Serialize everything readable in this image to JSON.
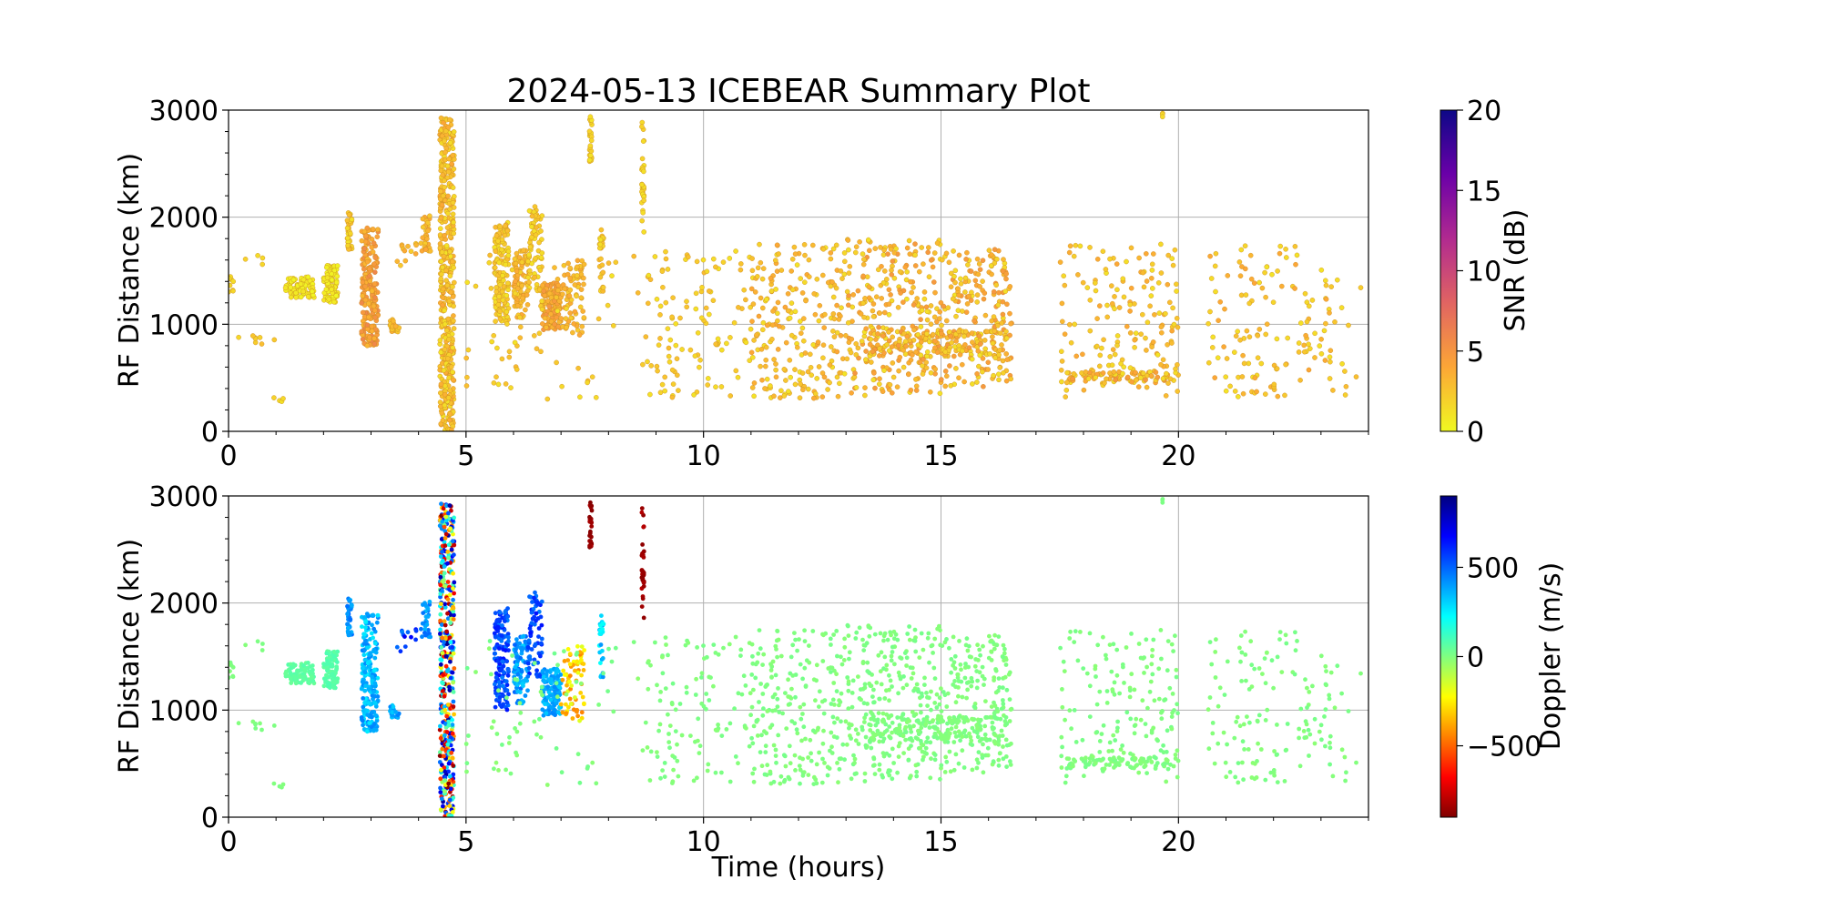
{
  "title": "2024-05-13 ICEBEAR Summary Plot",
  "chart_data": [
    {
      "type": "scatter",
      "panel": "top",
      "xlabel": "",
      "ylabel": "RF Distance (km)",
      "xlim": [
        0,
        24
      ],
      "ylim": [
        0,
        3000
      ],
      "xticks": [
        0,
        5,
        10,
        15,
        20
      ],
      "yticks": [
        0,
        1000,
        2000,
        3000
      ],
      "grid": true,
      "color_by": "snr",
      "colorbar": {
        "label": "SNR (dB)",
        "range": [
          0,
          20
        ],
        "ticks": [
          0,
          5,
          10,
          15,
          20
        ],
        "colormap": "plasma_r",
        "colors": [
          "#f0f921",
          "#fca636",
          "#e16462",
          "#b12a90",
          "#6a00a8",
          "#0d0887"
        ]
      }
    },
    {
      "type": "scatter",
      "panel": "bottom",
      "xlabel": "Time (hours)",
      "ylabel": "RF Distance (km)",
      "xlim": [
        0,
        24
      ],
      "ylim": [
        0,
        3000
      ],
      "xticks": [
        0,
        5,
        10,
        15,
        20
      ],
      "yticks": [
        0,
        1000,
        2000,
        3000
      ],
      "grid": true,
      "color_by": "doppler",
      "colorbar": {
        "label": "Doppler (m/s)",
        "range": [
          -900,
          900
        ],
        "ticks": [
          -500,
          0,
          500
        ],
        "tick_labels": [
          "−500",
          "0",
          "500"
        ],
        "colormap": "jet_r",
        "colors": [
          "#800000",
          "#ff0000",
          "#ff8000",
          "#ffff00",
          "#80ff80",
          "#00ffff",
          "#0080ff",
          "#0000ff",
          "#000080"
        ]
      }
    }
  ],
  "clusters": [
    {
      "t": [
        0.0,
        0.1
      ],
      "r": [
        1300,
        1450
      ],
      "n": 8,
      "snr": [
        1,
        2
      ],
      "dop": [
        -10,
        10
      ]
    },
    {
      "t": [
        0.2,
        1.0
      ],
      "r": [
        800,
        900
      ],
      "n": 8,
      "snr": [
        1,
        3
      ],
      "dop": [
        -10,
        10
      ]
    },
    {
      "t": [
        0.8,
        1.2
      ],
      "r": [
        270,
        320
      ],
      "n": 4,
      "snr": [
        1,
        2
      ],
      "dop": [
        -10,
        10
      ]
    },
    {
      "t": [
        0.3,
        0.8
      ],
      "r": [
        1550,
        1650
      ],
      "n": 4,
      "snr": [
        1,
        2
      ],
      "dop": [
        -10,
        10
      ]
    },
    {
      "t": [
        1.2,
        1.8
      ],
      "r": [
        1250,
        1450
      ],
      "n": 90,
      "snr": [
        0,
        1
      ],
      "dop": [
        40,
        80
      ]
    },
    {
      "t": [
        2.0,
        2.3
      ],
      "r": [
        1200,
        1550
      ],
      "n": 90,
      "snr": [
        0,
        1
      ],
      "dop": [
        50,
        90
      ]
    },
    {
      "t": [
        2.5,
        2.6
      ],
      "r": [
        1700,
        2050
      ],
      "n": 40,
      "snr": [
        1,
        3
      ],
      "dop": [
        350,
        500
      ]
    },
    {
      "t": [
        2.8,
        3.15
      ],
      "r": [
        800,
        1900
      ],
      "n": 200,
      "snr": [
        3,
        6
      ],
      "dop": [
        250,
        450
      ]
    },
    {
      "t": [
        3.4,
        3.6
      ],
      "r": [
        900,
        1050
      ],
      "n": 20,
      "snr": [
        2,
        4
      ],
      "dop": [
        300,
        450
      ]
    },
    {
      "t": [
        3.5,
        4.0
      ],
      "r": [
        1500,
        1800
      ],
      "n": 12,
      "snr": [
        2,
        4
      ],
      "dop": [
        400,
        700
      ]
    },
    {
      "t": [
        4.05,
        4.25
      ],
      "r": [
        1650,
        2050
      ],
      "n": 30,
      "snr": [
        2,
        4
      ],
      "dop": [
        350,
        500
      ]
    },
    {
      "t": [
        4.45,
        4.75
      ],
      "r": [
        0,
        2950
      ],
      "n": 450,
      "snr": [
        1,
        4
      ],
      "dop": [
        -900,
        900
      ]
    },
    {
      "t": [
        5.6,
        5.9
      ],
      "r": [
        1000,
        1950
      ],
      "n": 140,
      "snr": [
        1,
        3
      ],
      "dop": [
        450,
        650
      ]
    },
    {
      "t": [
        6.0,
        6.3
      ],
      "r": [
        1050,
        1700
      ],
      "n": 90,
      "snr": [
        2,
        4
      ],
      "dop": [
        300,
        500
      ]
    },
    {
      "t": [
        6.3,
        6.6
      ],
      "r": [
        1300,
        2100
      ],
      "n": 70,
      "snr": [
        1,
        3
      ],
      "dop": [
        450,
        650
      ]
    },
    {
      "t": [
        6.6,
        7.0
      ],
      "r": [
        950,
        1400
      ],
      "n": 120,
      "snr": [
        3,
        5
      ],
      "dop": [
        300,
        450
      ]
    },
    {
      "t": [
        7.0,
        7.5
      ],
      "r": [
        900,
        1600
      ],
      "n": 70,
      "snr": [
        2,
        4
      ],
      "dop": [
        -450,
        -150
      ]
    },
    {
      "t": [
        7.6,
        7.65
      ],
      "r": [
        2500,
        2950
      ],
      "n": 25,
      "snr": [
        1,
        2
      ],
      "dop": [
        -900,
        -800
      ]
    },
    {
      "t": [
        7.8,
        7.9
      ],
      "r": [
        1300,
        1900
      ],
      "n": 25,
      "snr": [
        1,
        3
      ],
      "dop": [
        200,
        450
      ]
    },
    {
      "t": [
        8.7,
        8.75
      ],
      "r": [
        1850,
        2950
      ],
      "n": 30,
      "snr": [
        1,
        2
      ],
      "dop": [
        -900,
        -800
      ]
    },
    {
      "t": [
        5.0,
        8.8
      ],
      "r": [
        300,
        1700
      ],
      "n": 70,
      "snr": [
        1,
        3
      ],
      "dop": [
        -30,
        30
      ]
    },
    {
      "t": [
        8.8,
        11.0
      ],
      "r": [
        300,
        1700
      ],
      "n": 110,
      "snr": [
        1,
        3
      ],
      "dop": [
        -20,
        20
      ]
    },
    {
      "t": [
        11.0,
        13.0
      ],
      "r": [
        300,
        1750
      ],
      "n": 220,
      "snr": [
        1,
        4
      ],
      "dop": [
        -20,
        20
      ]
    },
    {
      "t": [
        13.0,
        15.0
      ],
      "r": [
        300,
        1800
      ],
      "n": 280,
      "snr": [
        1,
        5
      ],
      "dop": [
        -20,
        20
      ]
    },
    {
      "t": [
        13.5,
        16.4
      ],
      "r": [
        700,
        950
      ],
      "n": 160,
      "snr": [
        1,
        5
      ],
      "dop": [
        -20,
        20
      ]
    },
    {
      "t": [
        15.0,
        16.5
      ],
      "r": [
        400,
        1700
      ],
      "n": 200,
      "snr": [
        1,
        5
      ],
      "dop": [
        -20,
        20
      ]
    },
    {
      "t": [
        17.5,
        20.0
      ],
      "r": [
        300,
        1750
      ],
      "n": 170,
      "snr": [
        1,
        4
      ],
      "dop": [
        -20,
        20
      ]
    },
    {
      "t": [
        17.5,
        19.8
      ],
      "r": [
        450,
        560
      ],
      "n": 70,
      "snr": [
        1,
        5
      ],
      "dop": [
        -20,
        20
      ]
    },
    {
      "t": [
        20.6,
        23.2
      ],
      "r": [
        300,
        1750
      ],
      "n": 130,
      "snr": [
        1,
        4
      ],
      "dop": [
        -20,
        20
      ]
    },
    {
      "t": [
        23.0,
        24.0
      ],
      "r": [
        300,
        1500
      ],
      "n": 14,
      "snr": [
        1,
        3
      ],
      "dop": [
        -20,
        20
      ]
    },
    {
      "t": [
        19.6,
        19.7
      ],
      "r": [
        2930,
        2980
      ],
      "n": 3,
      "snr": [
        1,
        2
      ],
      "dop": [
        0,
        10
      ]
    }
  ]
}
